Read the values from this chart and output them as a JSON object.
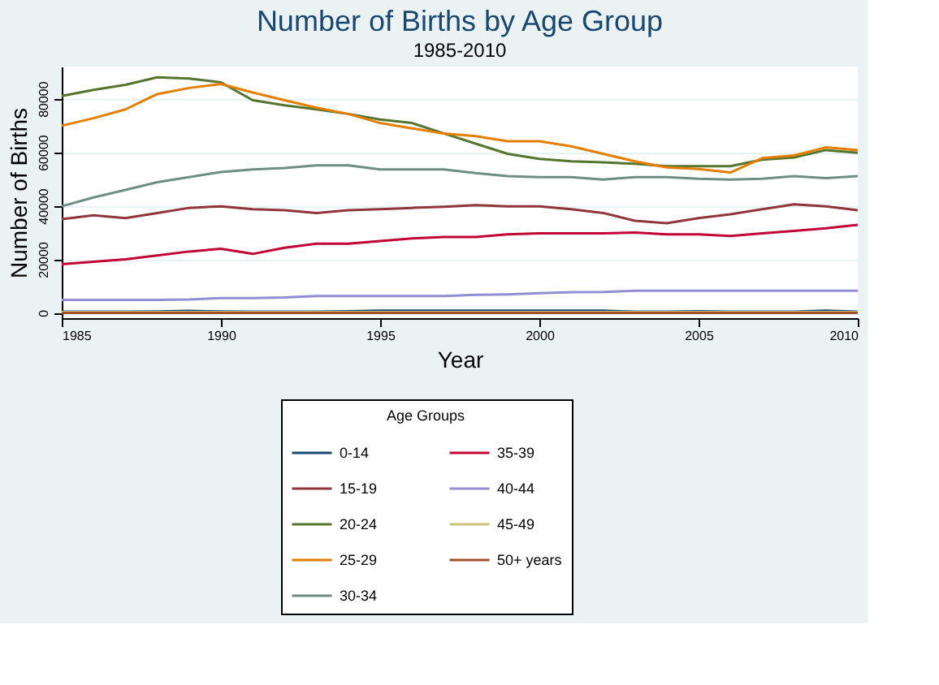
{
  "chart_data": {
    "type": "line",
    "title": "Number of Births by Age Group",
    "subtitle": "1985-2010",
    "xlabel": "Year",
    "ylabel": "Number of Births",
    "legend_title": "Age Groups",
    "legend": "bottom",
    "grid": "y",
    "x": [
      1985,
      1986,
      1987,
      1988,
      1989,
      1990,
      1991,
      1992,
      1993,
      1994,
      1995,
      1996,
      1997,
      1998,
      1999,
      2000,
      2001,
      2002,
      2003,
      2004,
      2005,
      2006,
      2007,
      2008,
      2009,
      2010
    ],
    "xlim": [
      1985,
      2010
    ],
    "xticks": [
      1985,
      1990,
      1995,
      2000,
      2005,
      2010
    ],
    "ylim": [
      -2000,
      92000
    ],
    "yticks": [
      0,
      20000,
      40000,
      60000,
      80000
    ],
    "series": [
      {
        "name": "0-14",
        "color": "#1a476f",
        "values": [
          400,
          400,
          400,
          500,
          700,
          500,
          400,
          400,
          400,
          600,
          800,
          800,
          800,
          800,
          800,
          800,
          800,
          800,
          400,
          400,
          600,
          400,
          400,
          400,
          800,
          400
        ]
      },
      {
        "name": "15-19",
        "color": "#90353b",
        "values": [
          35000,
          36400,
          35400,
          37300,
          39200,
          39800,
          38700,
          38300,
          37300,
          38300,
          38700,
          39200,
          39600,
          40200,
          39800,
          39800,
          38700,
          37300,
          34400,
          33500,
          35400,
          36800,
          38700,
          40500,
          39800,
          38300
        ]
      },
      {
        "name": "20-24",
        "color": "#55752f",
        "values": [
          81000,
          83300,
          85200,
          88000,
          87500,
          86100,
          79400,
          77500,
          76000,
          74300,
          72200,
          70900,
          67000,
          63200,
          59400,
          57500,
          56600,
          56200,
          55700,
          54800,
          54800,
          54800,
          57200,
          58000,
          60800,
          59800
        ]
      },
      {
        "name": "25-29",
        "color": "#e37e00",
        "values": [
          69900,
          72700,
          76000,
          81700,
          84000,
          85500,
          82300,
          79400,
          76600,
          74300,
          70900,
          68900,
          67000,
          66000,
          64100,
          64100,
          62200,
          59400,
          56600,
          54300,
          53700,
          52400,
          57800,
          58800,
          61800,
          60800
        ]
      },
      {
        "name": "30-34",
        "color": "#6e8e84",
        "values": [
          39800,
          43100,
          45900,
          48800,
          50700,
          52600,
          53600,
          54100,
          55100,
          55100,
          53600,
          53600,
          53600,
          52200,
          51100,
          50700,
          50700,
          49800,
          50700,
          50700,
          50100,
          49800,
          50100,
          51100,
          50300,
          51100
        ]
      },
      {
        "name": "35-39",
        "color": "#c10534",
        "values": [
          18200,
          19100,
          20000,
          21400,
          22900,
          23900,
          22000,
          24300,
          25800,
          25800,
          26800,
          27800,
          28300,
          28300,
          29300,
          29700,
          29700,
          29700,
          30000,
          29300,
          29300,
          28700,
          29700,
          30600,
          31600,
          32900
        ]
      },
      {
        "name": "40-44",
        "color": "#938dd2",
        "values": [
          4800,
          4800,
          4800,
          4800,
          5000,
          5500,
          5500,
          5700,
          6300,
          6300,
          6300,
          6300,
          6300,
          6700,
          6900,
          7300,
          7700,
          7800,
          8200,
          8200,
          8200,
          8200,
          8200,
          8200,
          8200,
          8200
        ]
      },
      {
        "name": "45-49",
        "color": "#cac27e",
        "values": [
          300,
          300,
          300,
          300,
          300,
          300,
          300,
          300,
          300,
          300,
          300,
          300,
          300,
          300,
          300,
          300,
          300,
          300,
          300,
          300,
          300,
          300,
          300,
          300,
          300,
          300
        ]
      },
      {
        "name": "50+ years",
        "color": "#a0522d",
        "values": [
          0,
          0,
          0,
          0,
          0,
          0,
          0,
          0,
          0,
          0,
          0,
          0,
          0,
          0,
          0,
          0,
          0,
          0,
          0,
          0,
          0,
          0,
          0,
          0,
          0,
          0
        ]
      }
    ]
  }
}
